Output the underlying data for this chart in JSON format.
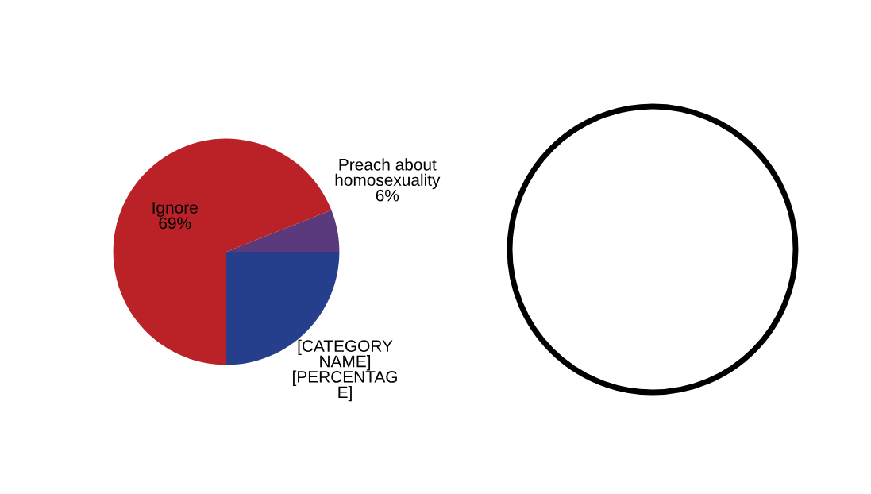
{
  "chart_data": {
    "type": "pie",
    "categories": [
      "[CATEGORY NAME]",
      "Preach about homosexuality",
      "Ignore"
    ],
    "values": [
      25,
      6,
      69
    ],
    "value_labels": [
      "[PERCENTAGE]",
      "6%",
      "69%"
    ],
    "colors": [
      "#263f8c",
      "#5a3a7a",
      "#bb2227"
    ]
  }
}
